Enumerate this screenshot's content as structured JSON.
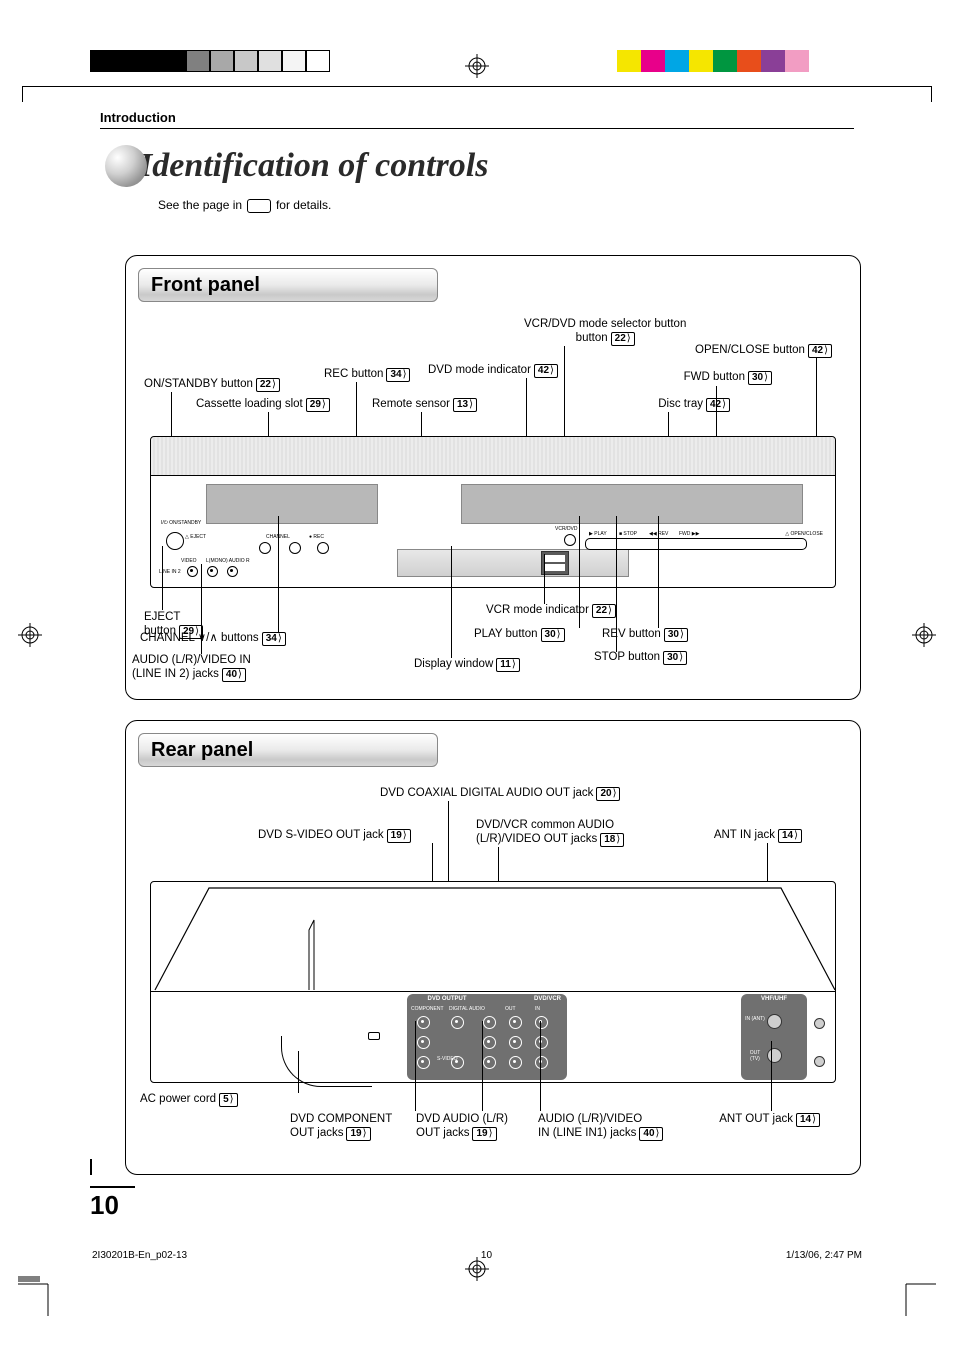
{
  "meta": {
    "section": "Introduction",
    "title": "Identification of controls",
    "subtitle_pre": "See the page in",
    "subtitle_post": "for details.",
    "page_number": "10",
    "footer_file": "2I30201B-En_p02-13",
    "footer_page": "10",
    "footer_date": "1/13/06, 2:47 PM"
  },
  "reg_colors": {
    "bw": [
      "#000000",
      "#000000",
      "#000000",
      "#000000",
      "#808080",
      "#a8a8a8",
      "#c8c8c8",
      "#e0e0e0",
      "#f4f4f4",
      "#ffffff"
    ],
    "cmyk": [
      "#f5e600",
      "#e8008a",
      "#00a6e5",
      "#f5e600",
      "#009640",
      "#e84e1b",
      "#8a3f97",
      "#f29dc3"
    ],
    "box_border": "#000000"
  },
  "panels": {
    "front": {
      "label": "Front panel",
      "callouts_top": [
        {
          "text": "ON/STANDBY button",
          "ref": "22"
        },
        {
          "text": "Cassette loading slot",
          "ref": "29"
        },
        {
          "text": "REC button",
          "ref": "34"
        },
        {
          "text": "Remote sensor",
          "ref": "13"
        },
        {
          "text": "DVD mode indicator",
          "ref": "42"
        },
        {
          "text": "VCR/DVD mode selector button",
          "ref": "22"
        },
        {
          "text": "OPEN/CLOSE button",
          "ref": "42"
        },
        {
          "text": "FWD button",
          "ref": "30"
        },
        {
          "text": "Disc tray",
          "ref": "42"
        }
      ],
      "callouts_bottom": [
        {
          "text_a": "EJECT",
          "text_b": "button",
          "ref": "29"
        },
        {
          "text": "CHANNEL ∨/∧ buttons",
          "ref": "34"
        },
        {
          "text_a": "AUDIO (L/R)/VIDEO IN",
          "text_b": "(LINE IN 2) jacks",
          "ref": "40"
        },
        {
          "text": "Display window",
          "ref": "11"
        },
        {
          "text": "VCR mode indicator",
          "ref": "22"
        },
        {
          "text": "PLAY button",
          "ref": "30"
        },
        {
          "text": "STOP button",
          "ref": "30"
        },
        {
          "text": "REV button",
          "ref": "30"
        }
      ],
      "device_labels": {
        "standby": "I/⏻ ON/STANDBY",
        "eject": "△ EJECT",
        "channel": "CHANNEL",
        "rec": "● REC",
        "video": "VIDEO",
        "audio": "L(MONO) AUDIO R",
        "line": "LINE IN 2",
        "vcrdvd": "VCR/DVD",
        "play": "▶ PLAY",
        "stop": "■ STOP",
        "rev": "◀◀ REV",
        "fwd": "FWD ▶▶",
        "open": "△ OPEN/CLOSE",
        "dvd": "DVD",
        "vcr": "VCR"
      }
    },
    "rear": {
      "label": "Rear panel",
      "callouts_top": [
        {
          "text": "DVD COAXIAL DIGITAL AUDIO OUT jack",
          "ref": "20"
        },
        {
          "text": "DVD S-VIDEO OUT jack",
          "ref": "19"
        },
        {
          "text_a": "DVD/VCR common AUDIO",
          "text_b": "(L/R)/VIDEO OUT jacks",
          "ref": "18"
        },
        {
          "text": "ANT IN jack",
          "ref": "14"
        }
      ],
      "callouts_bottom": [
        {
          "text": "AC power cord",
          "ref": "5"
        },
        {
          "text_a": "DVD COMPONENT",
          "text_b": "OUT jacks",
          "ref": "19"
        },
        {
          "text_a": "DVD AUDIO (L/R)",
          "text_b": "OUT jacks",
          "ref": "19"
        },
        {
          "text_a": "AUDIO (L/R)/VIDEO",
          "text_b": "IN (LINE IN1) jacks",
          "ref": "40"
        },
        {
          "text": "ANT OUT jack",
          "ref": "14"
        }
      ],
      "device_labels": {
        "dvd_output": "DVD OUTPUT",
        "dvd_vcr": "DVD/VCR",
        "component": "COMPONENT",
        "digital": "DIGITAL AUDIO",
        "coaxial": "COAXIAL",
        "svideo": "S-VIDEO",
        "out": "OUT",
        "in": "IN",
        "vhf": "VHF/UHF",
        "in_ant": "IN (ANT)",
        "out_tv": "OUT (TV)"
      }
    }
  }
}
